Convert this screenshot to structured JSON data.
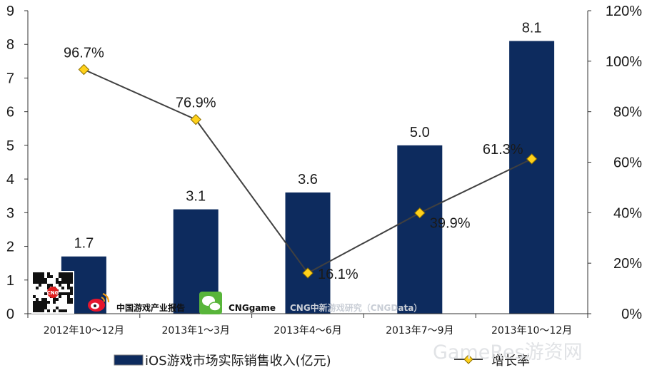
{
  "chart_data": {
    "type": "bar",
    "categories": [
      "2012年10～12月",
      "2013年1～3月",
      "2013年4～6月",
      "2013年7～9月",
      "2013年10～12月"
    ],
    "series": [
      {
        "name": "iOS游戏市场实际销售收入(亿元)",
        "type": "bar",
        "axis": "left",
        "values": [
          1.7,
          3.1,
          3.6,
          5.0,
          8.1
        ],
        "labels": [
          "1.7",
          "3.1",
          "3.6",
          "5.0",
          "8.1"
        ],
        "color": "#0d2b5e"
      },
      {
        "name": "增长率",
        "type": "line",
        "axis": "right",
        "values": [
          96.7,
          76.9,
          16.1,
          39.9,
          61.3
        ],
        "labels": [
          "96.7%",
          "76.9%",
          "16.1%",
          "39.9%",
          "61.3%"
        ],
        "color": "#404040",
        "marker_color": "#ffd11a"
      }
    ],
    "y_left": {
      "ylim": [
        0,
        9
      ],
      "ticks": [
        "0",
        "1",
        "2",
        "3",
        "4",
        "5",
        "6",
        "7",
        "8",
        "9"
      ]
    },
    "y_right": {
      "ylim": [
        0,
        120
      ],
      "ticks": [
        "0%",
        "20%",
        "40%",
        "60%",
        "80%",
        "100%",
        "120%"
      ]
    },
    "grid": false,
    "legend_position": "bottom"
  },
  "watermark": {
    "report_text": "中国游戏产业报告",
    "wechat_text": "CNGgame",
    "research_text": "CNG中新游戏研究（CNGData）",
    "qr_badge_text": "CNG",
    "corner_text": "GameRes游资网"
  }
}
